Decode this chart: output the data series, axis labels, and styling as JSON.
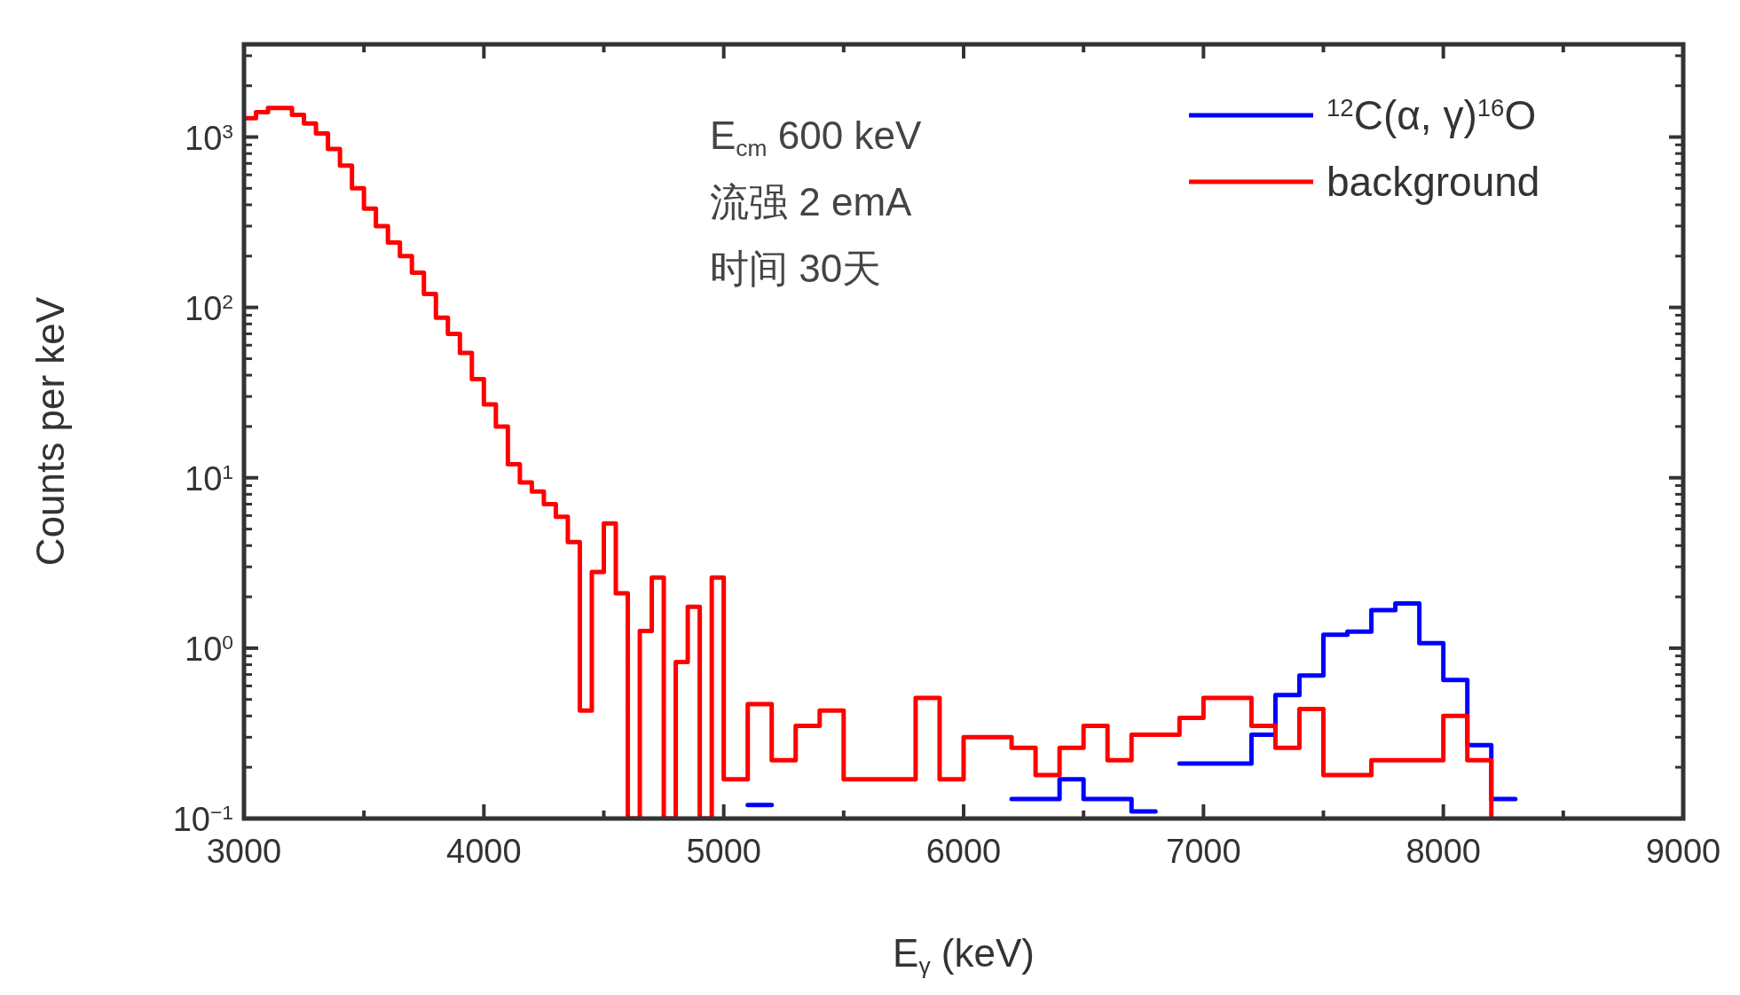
{
  "chart_data": {
    "type": "step",
    "xlabel": "E$_{γ}$ (keV)",
    "ylabel": "Counts per keV",
    "log": "y",
    "legend": "top right",
    "xlim": [
      3000,
      9000
    ],
    "ylim": [
      0.1,
      3500
    ],
    "xticks": [
      3000,
      {
        "value": 3500,
        "label": null
      },
      4000,
      {
        "value": 4500,
        "label": null
      },
      5000,
      {
        "value": 5500,
        "label": null
      },
      6000,
      {
        "value": 6500,
        "label": null
      },
      7000,
      {
        "value": 7500,
        "label": null
      },
      8000,
      {
        "value": 8500,
        "label": null
      },
      9000
    ],
    "yticks": [
      {
        "value": 0.1,
        "label": "10$^{−1}$"
      },
      {
        "value": 1,
        "label": "10$^{0}$"
      },
      {
        "value": 10,
        "label": "10$^{1}$"
      },
      {
        "value": 100,
        "label": "10$^{2}$"
      },
      {
        "value": 1000,
        "label": "10$^{3}$"
      }
    ],
    "annotations": [
      "E$_{cm}$ 600 keV",
      "流强 2 emA",
      "时间 30天"
    ],
    "series": [
      {
        "name": "$^{12}$C(α, γ)$^{16}$O",
        "color": "#0000ff",
        "x": [
          5100,
          5200,
          6200,
          6300,
          6400,
          6500,
          6600,
          6700,
          6800,
          6900,
          7000,
          7100,
          7200,
          7300,
          7400,
          7500,
          7600,
          7700,
          7800,
          7900,
          8000,
          8100,
          8200,
          8300
        ],
        "values": [
          0.12,
          null,
          0.13,
          0.13,
          0.17,
          0.13,
          0.13,
          0.11,
          null,
          0.21,
          0.21,
          0.21,
          0.31,
          0.53,
          0.69,
          1.2,
          1.25,
          1.67,
          1.83,
          1.07,
          0.65,
          0.27,
          0.13,
          0.13
        ]
      },
      {
        "name": "background",
        "color": "#ff0000",
        "x": [
          3000,
          3050,
          3100,
          3150,
          3200,
          3250,
          3300,
          3350,
          3400,
          3450,
          3500,
          3550,
          3600,
          3650,
          3700,
          3750,
          3800,
          3850,
          3900,
          3950,
          4000,
          4050,
          4100,
          4150,
          4200,
          4250,
          4300,
          4350,
          4400,
          4450,
          4500,
          4550,
          4600,
          4650,
          4700,
          4750,
          4800,
          4850,
          4900,
          4950,
          5000,
          5100,
          5200,
          5300,
          5400,
          5500,
          5600,
          5700,
          5800,
          5900,
          6000,
          6100,
          6200,
          6300,
          6400,
          6500,
          6600,
          6700,
          6800,
          6900,
          7000,
          7100,
          7200,
          7300,
          7400,
          7500,
          7600,
          7700,
          7800,
          7900,
          8000,
          8100,
          8200
        ],
        "values": [
          1290,
          1400,
          1480,
          1480,
          1350,
          1200,
          1050,
          850,
          680,
          500,
          380,
          300,
          240,
          200,
          160,
          120,
          87,
          70,
          54,
          38,
          27,
          20,
          12,
          9.4,
          8.3,
          7,
          5.9,
          4.2,
          0.43,
          2.8,
          5.4,
          2.1,
          0.1,
          1.26,
          2.6,
          0.1,
          0.83,
          1.75,
          0.1,
          2.6,
          0.17,
          0.47,
          0.22,
          0.35,
          0.43,
          0.17,
          0.17,
          0.17,
          0.51,
          0.17,
          0.3,
          0.3,
          0.26,
          0.18,
          0.26,
          0.35,
          0.22,
          0.31,
          0.31,
          0.39,
          0.51,
          0.51,
          0.35,
          0.26,
          0.44,
          0.18,
          0.18,
          0.22,
          0.22,
          0.22,
          0.4,
          0.22,
          0.1
        ]
      }
    ]
  }
}
